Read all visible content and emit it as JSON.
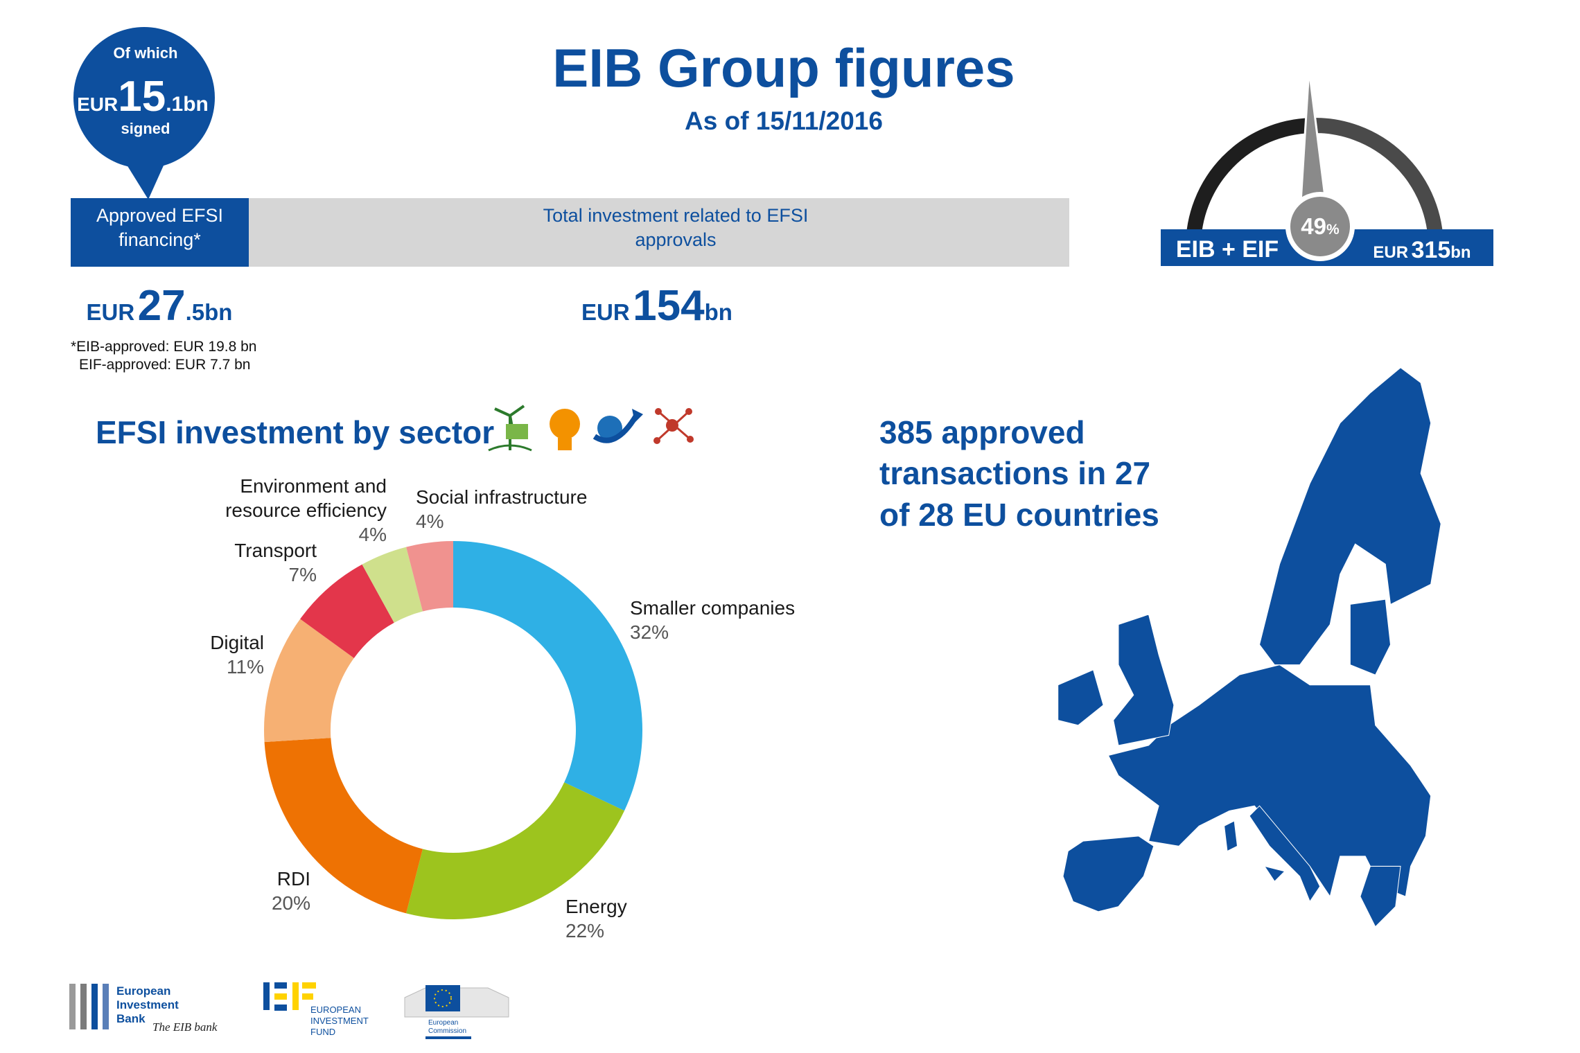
{
  "header": {
    "title": "EIB Group figures",
    "subtitle": "As of 15/11/2016"
  },
  "bubble": {
    "top": "Of which",
    "currency": "EUR",
    "big": "15",
    "small": ".1bn",
    "bottom": "signed"
  },
  "bar": {
    "left_label": "Approved EFSI financing*",
    "right_label": "Total investment related to EFSI approvals"
  },
  "amounts": [
    {
      "currency": "EUR",
      "big": "27",
      "small": ".5bn"
    },
    {
      "currency": "EUR",
      "big": "154",
      "small": "bn"
    }
  ],
  "footnote": [
    "*EIB-approved: EUR 19.8 bn",
    "EIF-approved: EUR 7.7 bn"
  ],
  "gauge": {
    "value": 49,
    "unit": "%",
    "left_text": "EIB + EIF",
    "currency": "EUR",
    "big": "315",
    "small": "bn"
  },
  "map_text": [
    "385 approved",
    "transactions in 27",
    "of 28 EU countries"
  ],
  "logos": {
    "eib": [
      "European",
      "Investment",
      "Bank"
    ],
    "eib_tagline": "The EIB bank",
    "eif": [
      "EUROPEAN",
      "INVESTMENT",
      "FUND"
    ],
    "ec": [
      "European",
      "Commission"
    ]
  },
  "chart_data": {
    "type": "donut",
    "title": "EFSI investment by sector",
    "categories": [
      "Smaller companies",
      "Energy",
      "RDI",
      "Digital",
      "Transport",
      "Environment and resource efficiency",
      "Social infrastructure"
    ],
    "values": [
      32,
      22,
      20,
      11,
      7,
      4,
      4
    ],
    "value_labels": [
      "32%",
      "22%",
      "20%",
      "11%",
      "7%",
      "4%",
      "4%"
    ],
    "colors": [
      "#2fb0e5",
      "#9dc41e",
      "#ee7203",
      "#f6b073",
      "#e3364b",
      "#cfe08c",
      "#f0928f"
    ]
  }
}
